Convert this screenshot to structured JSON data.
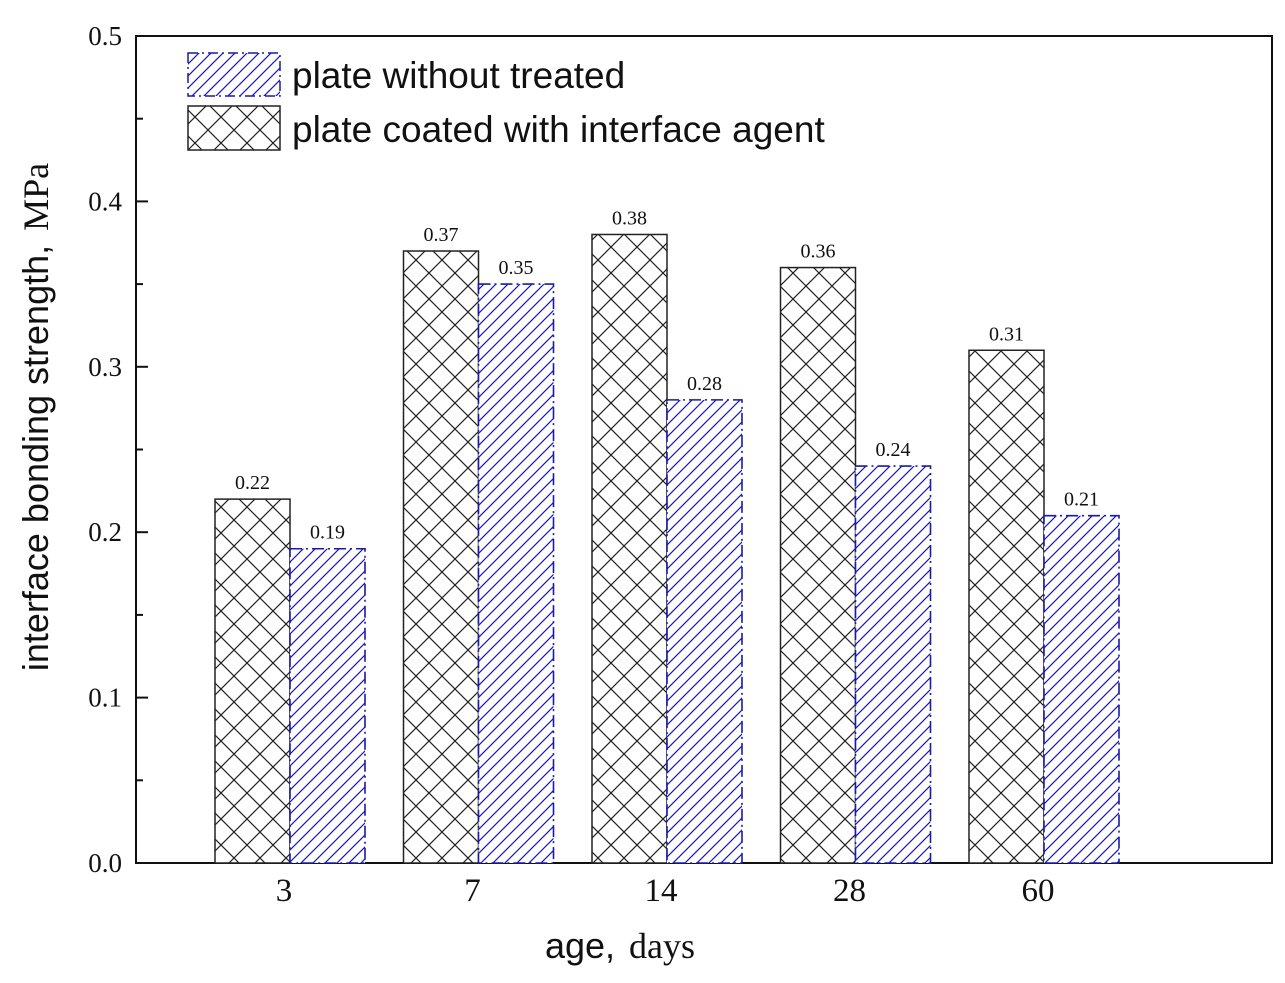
{
  "chart_data": {
    "type": "bar",
    "categories": [
      "3",
      "7",
      "14",
      "28",
      "60"
    ],
    "series": [
      {
        "name": "plate coated with interface agent",
        "values": [
          0.22,
          0.37,
          0.38,
          0.36,
          0.31
        ],
        "labels": [
          "0.22",
          "0.37",
          "0.38",
          "0.36",
          "0.31"
        ],
        "pattern": "crosshatch",
        "color": "#222222"
      },
      {
        "name": "plate without treated",
        "values": [
          0.19,
          0.35,
          0.28,
          0.24,
          0.21
        ],
        "labels": [
          "0.19",
          "0.35",
          "0.28",
          "0.24",
          "0.21"
        ],
        "pattern": "diagonal",
        "color": "#1a1aa8"
      }
    ],
    "xlabel_main": "age,",
    "xlabel_unit": "days",
    "ylabel_main": "interface bonding strength,",
    "ylabel_unit": "MPa",
    "ylim": [
      0.0,
      0.5
    ],
    "yticks": [
      "0.0",
      "0.1",
      "0.2",
      "0.3",
      "0.4",
      "0.5"
    ],
    "legend": [
      {
        "label": "plate without treated",
        "series": 1
      },
      {
        "label": "plate coated with interface agent",
        "series": 0
      }
    ],
    "legend_position": "top-left"
  }
}
